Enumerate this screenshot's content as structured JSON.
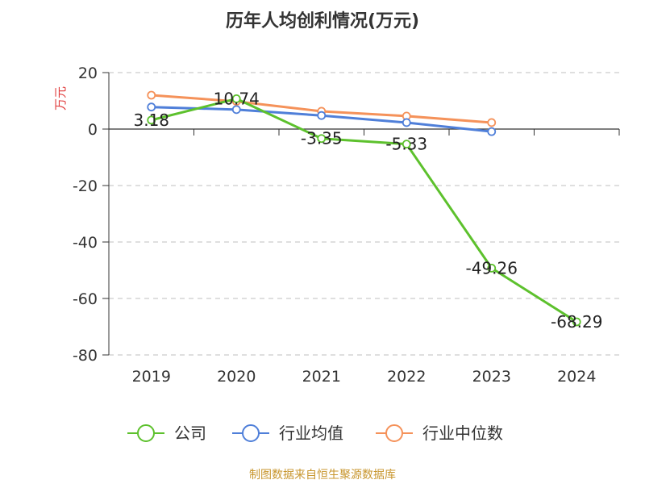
{
  "chart_data": {
    "type": "line",
    "title": "历年人均创利情况(万元)",
    "ylabel": "万元",
    "categories": [
      "2019",
      "2020",
      "2021",
      "2022",
      "2023",
      "2024"
    ],
    "ylim": [
      -80,
      20
    ],
    "yticks": [
      20,
      0,
      -20,
      -40,
      -60,
      -80
    ],
    "grid": true,
    "legend_position": "bottom",
    "series": [
      {
        "name": "公司",
        "color": "#5dc12d",
        "values": [
          3.18,
          10.74,
          -3.35,
          -5.33,
          -49.26,
          -68.29
        ],
        "labels": [
          "3.18",
          "10.74",
          "-3.35",
          "-5.33",
          "-49.26",
          "-68.29"
        ]
      },
      {
        "name": "行业均值",
        "color": "#4f7fd9",
        "values": [
          7.8,
          6.9,
          4.8,
          2.3,
          -0.9,
          null
        ]
      },
      {
        "name": "行业中位数",
        "color": "#f5925a",
        "values": [
          12.0,
          9.8,
          6.3,
          4.6,
          2.3,
          null
        ]
      }
    ]
  },
  "footer": "制图数据来自恒生聚源数据库"
}
